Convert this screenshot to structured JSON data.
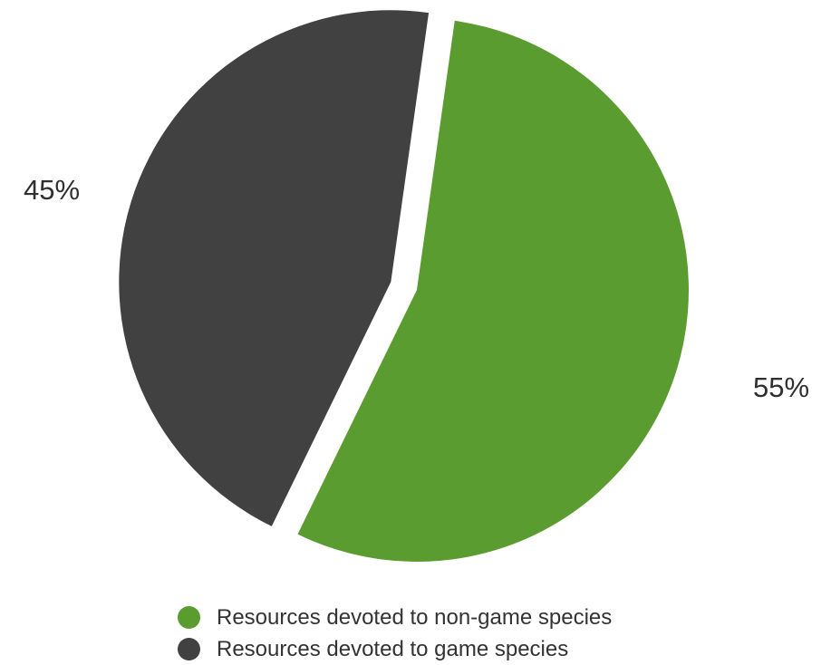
{
  "chart_data": {
    "type": "pie",
    "title": "",
    "slices": [
      {
        "name": "Resources devoted to non-game species",
        "value": 55,
        "label": "55%",
        "color": "#5b9c31",
        "exploded": false
      },
      {
        "name": "Resources devoted to game species",
        "value": 45,
        "label": "45%",
        "color": "#414142",
        "exploded": true
      }
    ],
    "legend_position": "bottom"
  },
  "legend": {
    "items": [
      {
        "label": "Resources devoted to non-game species",
        "color": "#5b9c31"
      },
      {
        "label": "Resources devoted to game species",
        "color": "#414142"
      }
    ]
  }
}
